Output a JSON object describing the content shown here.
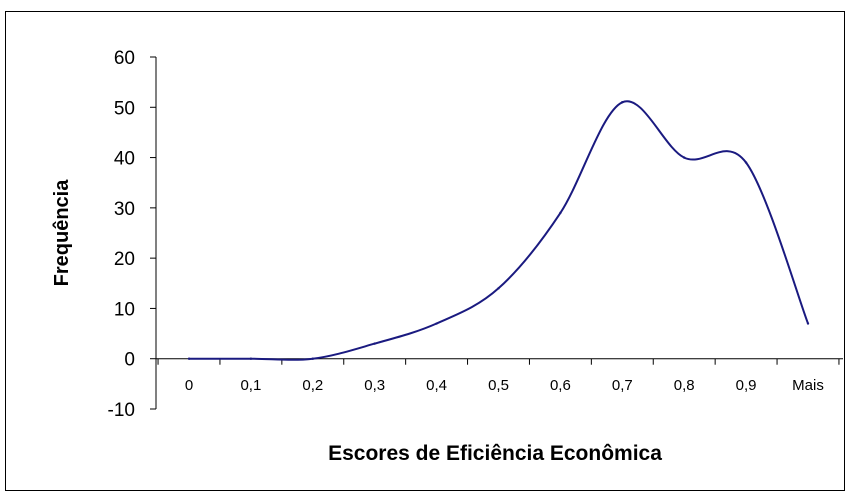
{
  "chart_data": {
    "type": "line",
    "title": "",
    "xlabel": "Escores de Eficiência Econômica",
    "ylabel": "Frequência",
    "categories": [
      "0",
      "0,1",
      "0,2",
      "0,3",
      "0,4",
      "0,5",
      "0,6",
      "0,7",
      "0,8",
      "0,9",
      "Mais"
    ],
    "x": [
      0,
      0.1,
      0.2,
      0.3,
      0.4,
      0.5,
      0.6,
      0.7,
      0.8,
      0.9,
      1.0
    ],
    "series": [
      {
        "values": [
          0,
          0,
          0,
          3,
          7,
          14,
          29,
          51,
          40,
          39,
          7
        ]
      }
    ],
    "yticks": [
      "60",
      "50",
      "40",
      "30",
      "20",
      "10",
      "0",
      "-10"
    ],
    "ylim": [
      -10,
      60
    ],
    "line_color": "#1a1a80",
    "grid": false,
    "legend": "none"
  }
}
